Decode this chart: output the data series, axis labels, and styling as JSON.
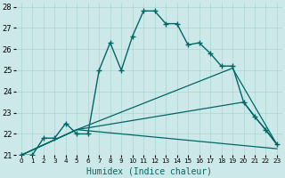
{
  "xlabel": "Humidex (Indice chaleur)",
  "background_color": "#cde8e8",
  "line_color": "#006666",
  "xlim": [
    -0.5,
    23.5
  ],
  "ylim": [
    21,
    28.2
  ],
  "yticks": [
    21,
    22,
    23,
    24,
    25,
    26,
    27,
    28
  ],
  "xticks": [
    0,
    1,
    2,
    3,
    4,
    5,
    6,
    7,
    8,
    9,
    10,
    11,
    12,
    13,
    14,
    15,
    16,
    17,
    18,
    19,
    20,
    21,
    22,
    23
  ],
  "lines": [
    {
      "x": [
        0,
        1,
        2,
        3,
        4,
        5,
        6,
        7,
        8,
        9,
        10,
        11,
        12,
        13,
        14,
        15,
        16,
        17,
        18,
        19,
        20,
        21,
        22,
        23
      ],
      "y": [
        21.0,
        21.0,
        21.8,
        21.8,
        22.5,
        22.0,
        22.0,
        25.0,
        26.3,
        25.0,
        26.6,
        27.8,
        27.8,
        27.2,
        27.2,
        26.2,
        26.3,
        25.8,
        25.2,
        25.2,
        23.5,
        22.8,
        22.2,
        21.5
      ],
      "marker": true,
      "linewidth": 1.0
    },
    {
      "x": [
        0,
        5,
        19,
        23
      ],
      "y": [
        21.0,
        22.2,
        25.1,
        21.5
      ],
      "marker": false,
      "linewidth": 0.9
    },
    {
      "x": [
        0,
        5,
        20,
        23
      ],
      "y": [
        21.0,
        22.2,
        23.5,
        21.5
      ],
      "marker": false,
      "linewidth": 0.9
    },
    {
      "x": [
        0,
        5,
        23
      ],
      "y": [
        21.0,
        22.2,
        21.3
      ],
      "marker": false,
      "linewidth": 0.9
    }
  ]
}
